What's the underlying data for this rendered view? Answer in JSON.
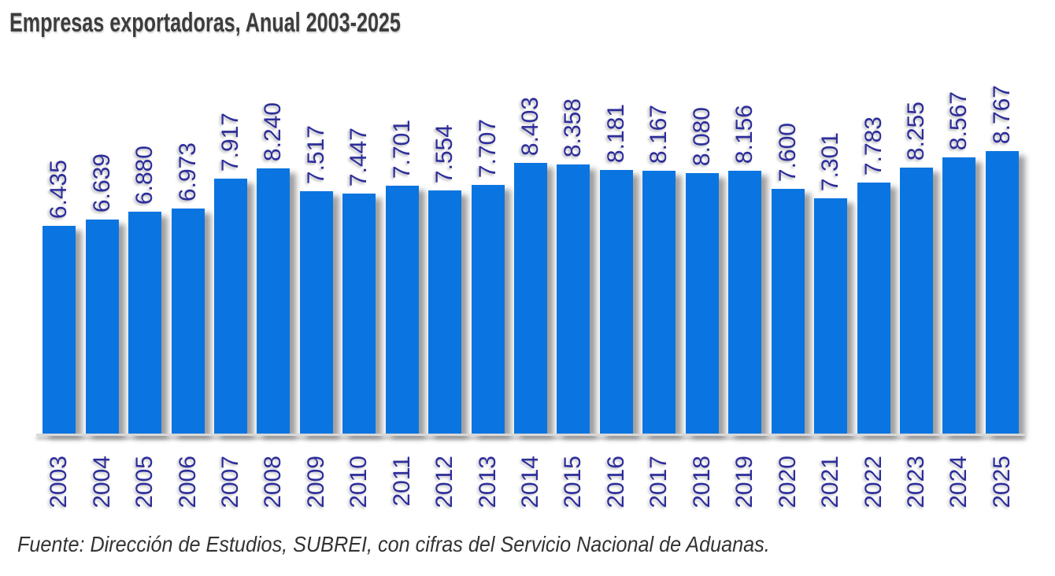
{
  "header": {
    "title": "Empresas exportadoras, Anual 2003-2025"
  },
  "footer": {
    "source": "Fuente: Dirección de Estudios, SUBREI, con cifras del Servicio Nacional de Aduanas."
  },
  "colors": {
    "bar": "#0a75e0",
    "data_label": "#2d2d9b",
    "title_text": "#3d3d3d",
    "axis_line": "#d8d8d8"
  },
  "chart_data": {
    "type": "bar",
    "title": "Empresas exportadoras, Anual 2003-2025",
    "categories": [
      "2003",
      "2004",
      "2005",
      "2006",
      "2007",
      "2008",
      "2009",
      "2010",
      "2011",
      "2012",
      "2013",
      "2014",
      "2015",
      "2016",
      "2017",
      "2018",
      "2019",
      "2020",
      "2021",
      "2022",
      "2023",
      "2024",
      "2025"
    ],
    "values": [
      6435,
      6639,
      6880,
      6973,
      7917,
      8240,
      7517,
      7447,
      7701,
      7554,
      7707,
      8403,
      8358,
      8181,
      8167,
      8080,
      8156,
      7600,
      7301,
      7783,
      8255,
      8567,
      8767
    ],
    "value_labels": [
      "6.435",
      "6.639",
      "6.880",
      "6.973",
      "7.917",
      "8.240",
      "7.517",
      "7.447",
      "7.701",
      "7.554",
      "7.707",
      "8.403",
      "8.358",
      "8.181",
      "8.167",
      "8.080",
      "8.156",
      "7.600",
      "7.301",
      "7.783",
      "8.255",
      "8.567",
      "8.767"
    ],
    "xlabel": "",
    "ylabel": "",
    "ylim": [
      0,
      8767
    ],
    "grid": false,
    "legend": false,
    "data_labels_rotated": true,
    "x_labels_rotated": true,
    "source": "Fuente: Dirección de Estudios, SUBREI, con cifras del Servicio Nacional de Aduanas."
  }
}
